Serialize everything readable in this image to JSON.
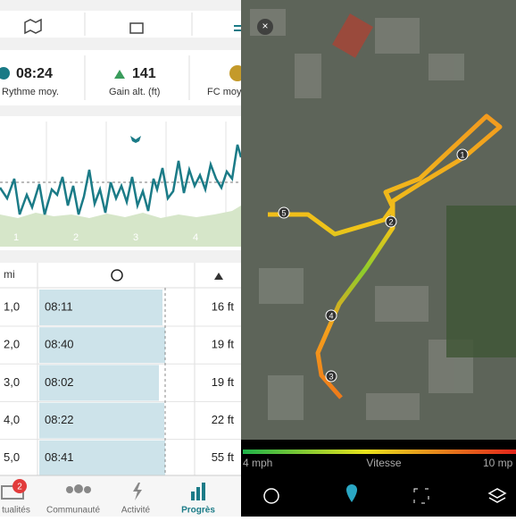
{
  "stats": [
    {
      "value": "08:24",
      "label": "Rythme moy."
    },
    {
      "value": "141",
      "label": "Gain alt. (ft)"
    },
    {
      "label": "FC moy"
    }
  ],
  "chart": {
    "x_labels": [
      "1",
      "2",
      "3",
      "4"
    ]
  },
  "table": {
    "header": "mi",
    "rows": [
      [
        "1,0",
        "08:11",
        "16 ft"
      ],
      [
        "2,0",
        "08:40",
        "19 ft"
      ],
      [
        "3,0",
        "08:02",
        "19 ft"
      ],
      [
        "4,0",
        "08:22",
        "22 ft"
      ],
      [
        "5,0",
        "08:41",
        "55 ft"
      ]
    ]
  },
  "nav": {
    "badge": "2",
    "items": [
      "tualités",
      "Communauté",
      "Activité",
      "Progrès"
    ]
  },
  "map": {
    "markers": [
      "1",
      "2",
      "3",
      "4",
      "5"
    ],
    "legend": {
      "min": "4 mph",
      "label": "Vitesse",
      "max": "10 mp"
    }
  }
}
